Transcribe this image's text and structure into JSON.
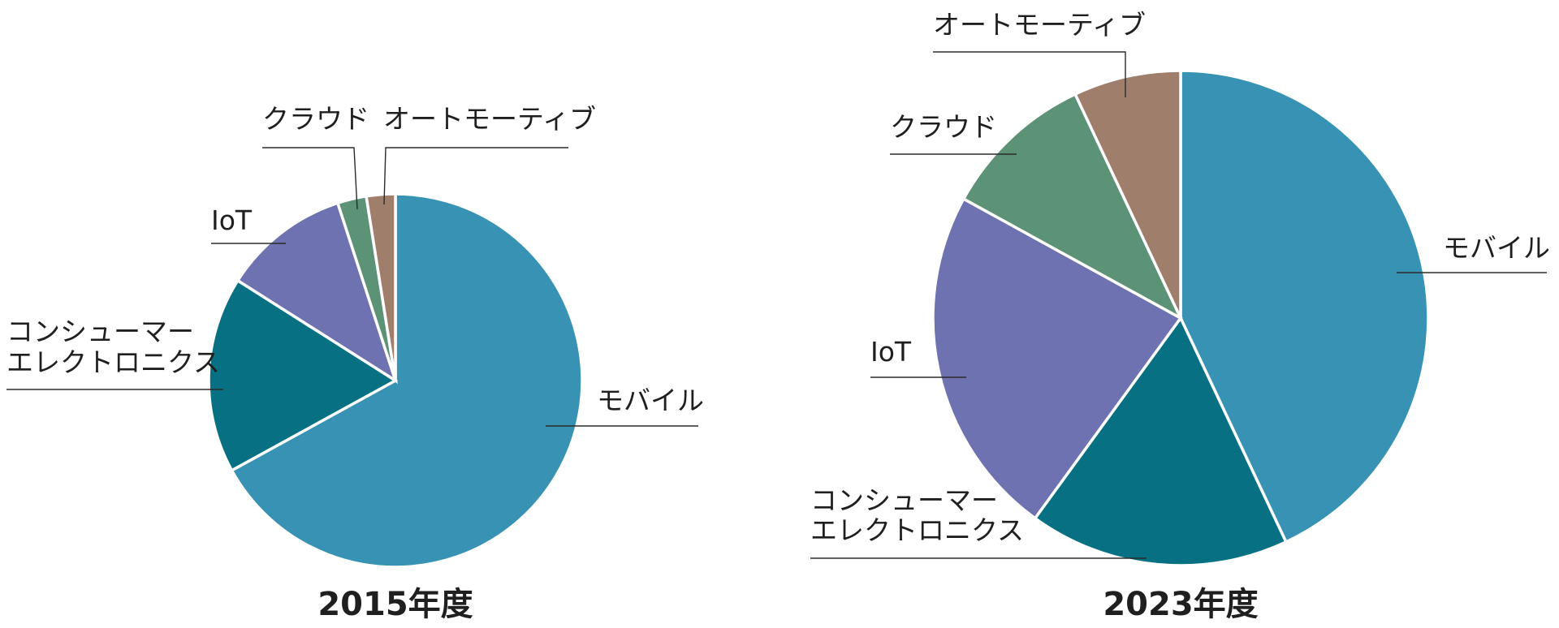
{
  "chart_data": [
    {
      "type": "pie",
      "title": "2015年度",
      "labels": [
        "モバイル",
        "コンシューマー\nエレクトロニクス",
        "IoT",
        "クラウド",
        "オートモーティブ"
      ],
      "values": [
        67,
        17,
        11,
        2.5,
        2.5
      ],
      "colors": [
        "#3792b3",
        "#077183",
        "#6e72b0",
        "#5c9275",
        "#9f7e6c"
      ]
    },
    {
      "type": "pie",
      "title": "2023年度",
      "labels": [
        "モバイル",
        "コンシューマー\nエレクトロニクス",
        "IoT",
        "クラウド",
        "オートモーティブ"
      ],
      "values": [
        43,
        17,
        23,
        10,
        7
      ],
      "colors": [
        "#3792b3",
        "#077183",
        "#6e72b0",
        "#5c9275",
        "#9f7e6c"
      ]
    }
  ]
}
